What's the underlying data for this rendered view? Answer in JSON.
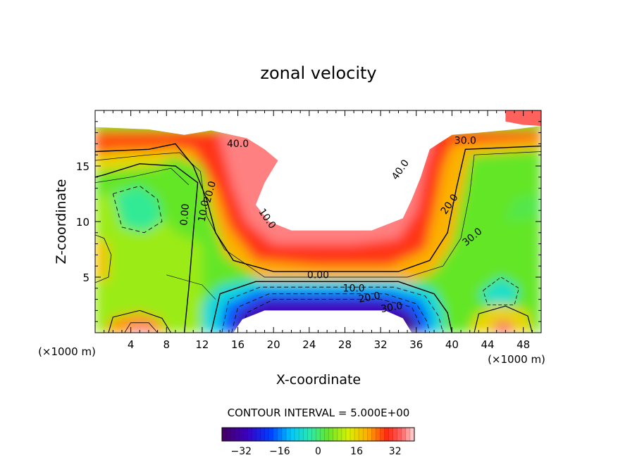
{
  "chart_data": {
    "type": "contour",
    "title": "zonal velocity",
    "xlabel": "X-coordinate",
    "ylabel": "Z-coordinate",
    "x_unit_label": "(×1000 m)",
    "x_unit_label_left": "(×1000 m)",
    "xlim": [
      0,
      50
    ],
    "ylim": [
      0,
      20
    ],
    "x_ticks": [
      4,
      8,
      12,
      16,
      20,
      24,
      28,
      32,
      36,
      40,
      44,
      48
    ],
    "y_ticks": [
      5,
      10,
      15
    ],
    "contour_interval_text": "CONTOUR INTERVAL = 5.000E+00",
    "contour_labels": [
      "40.0",
      "30.0",
      "40.0",
      "20.0",
      "10.0",
      "0.00",
      "10.0",
      "20.0",
      "30.0",
      "0.00",
      "10.0",
      "20.0",
      "30.0"
    ],
    "colorbar": {
      "range": [
        -40,
        40
      ],
      "ticks": [
        -32,
        -16,
        0,
        16,
        32
      ],
      "tick_labels": [
        "−32",
        "−16",
        "0",
        "16",
        "32"
      ]
    }
  }
}
